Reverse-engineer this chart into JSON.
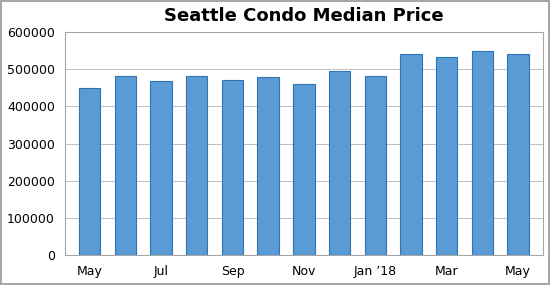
{
  "title": "Seattle Condo Median Price",
  "x_tick_labels": [
    "May",
    "Jul",
    "Sep",
    "Nov",
    "Jan ’18",
    "Mar",
    "May"
  ],
  "x_tick_positions": [
    0,
    2,
    4,
    6,
    8,
    10,
    12
  ],
  "values": [
    450000,
    482000,
    468000,
    482000,
    472000,
    478000,
    460000,
    495000,
    482000,
    540000,
    533000,
    550000,
    540000
  ],
  "bar_color": "#5B9BD5",
  "bar_edge_color": "#2E75B6",
  "ylim": [
    0,
    600000
  ],
  "yticks": [
    0,
    100000,
    200000,
    300000,
    400000,
    500000,
    600000
  ],
  "background_color": "#ffffff",
  "plot_background": "#ffffff",
  "grid_color": "#bfbfbf",
  "outer_border_color": "#a6a6a6",
  "title_fontsize": 13,
  "tick_fontsize": 9,
  "bar_width": 0.6
}
